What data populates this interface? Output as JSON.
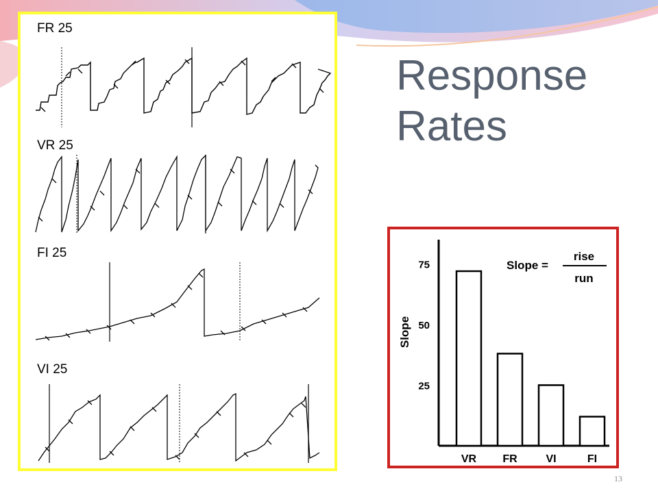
{
  "slide": {
    "title_lines": [
      "Response",
      "Rates"
    ],
    "page_number": "13"
  },
  "records": [
    {
      "label": "FR 25",
      "schedule": "fixed-ratio"
    },
    {
      "label": "VR 25",
      "schedule": "variable-ratio"
    },
    {
      "label": "FI 25",
      "schedule": "fixed-interval"
    },
    {
      "label": "VI 25",
      "schedule": "variable-interval"
    }
  ],
  "chart_data": {
    "type": "bar",
    "ylabel": "Slope",
    "yticks": [
      25,
      50,
      75
    ],
    "ylim": [
      0,
      85
    ],
    "categories": [
      "VR",
      "FR",
      "VI",
      "FI"
    ],
    "values": [
      72,
      38,
      25,
      12
    ],
    "formula": {
      "lhs": "Slope =",
      "numerator": "rise",
      "denominator": "run"
    }
  },
  "colors": {
    "records_border": "#ffff33",
    "chart_border": "#cc2222",
    "title": "#56606e"
  }
}
